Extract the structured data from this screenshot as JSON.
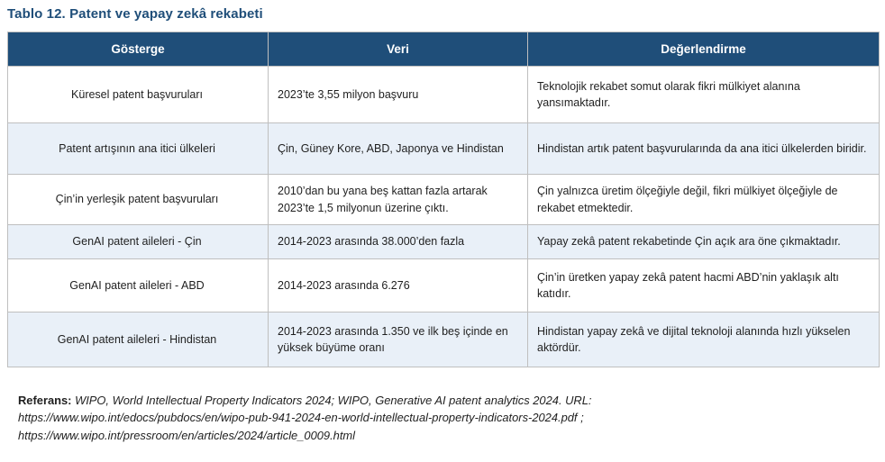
{
  "title": "Tablo 12. Patent ve yapay zekâ rekabeti",
  "table": {
    "columns": [
      "Gösterge",
      "Veri",
      "Değerlendirme"
    ],
    "rows": [
      {
        "gosterge": "Küresel patent başvuruları",
        "veri": "2023’te 3,55 milyon başvuru",
        "degerlendirme": "Teknolojik rekabet somut olarak fikri mülkiyet alanına yansımaktadır."
      },
      {
        "gosterge": "Patent artışının ana itici ülkeleri",
        "veri": "Çin, Güney Kore, ABD, Japonya ve Hindistan",
        "degerlendirme": "Hindistan artık patent başvurularında da ana itici ülkelerden biridir."
      },
      {
        "gosterge": "Çin’in yerleşik patent başvuruları",
        "veri": "2010’dan bu yana beş kattan fazla artarak 2023’te 1,5 milyonun üzerine çıktı.",
        "degerlendirme": "Çin yalnızca üretim ölçeğiyle değil, fikri mülkiyet ölçeğiyle de rekabet etmektedir."
      },
      {
        "gosterge": "GenAI patent aileleri - Çin",
        "veri": "2014-2023 arasında 38.000’den fazla",
        "degerlendirme": "Yapay zekâ patent rekabetinde Çin açık ara öne çıkmaktadır."
      },
      {
        "gosterge": "GenAI patent aileleri - ABD",
        "veri": "2014-2023 arasında 6.276",
        "degerlendirme": "Çin’in üretken yapay zekâ patent hacmi ABD’nin yaklaşık altı katıdır."
      },
      {
        "gosterge": "GenAI patent aileleri - Hindistan",
        "veri": "2014-2023 arasında 1.350 ve ilk beş içinde en yüksek büyüme oranı",
        "degerlendirme": "Hindistan yapay zekâ ve dijital teknoloji alanında hızlı yükselen aktördür."
      }
    ]
  },
  "reference": {
    "label": "Referans:",
    "text": "WIPO, World Intellectual Property Indicators 2024; WIPO, Generative AI patent analytics 2024. URL: https://www.wipo.int/edocs/pubdocs/en/wipo-pub-941-2024-en-world-intellectual-property-indicators-2024.pdf ; https://www.wipo.int/pressroom/en/articles/2024/article_0009.html"
  },
  "colors": {
    "title": "#1F4E79",
    "header_bg": "#1F4E79",
    "header_text": "#FFFFFF",
    "stripe_bg": "#E9F0F8",
    "border": "#BFBFBF",
    "body_text": "#1F1F1F"
  }
}
